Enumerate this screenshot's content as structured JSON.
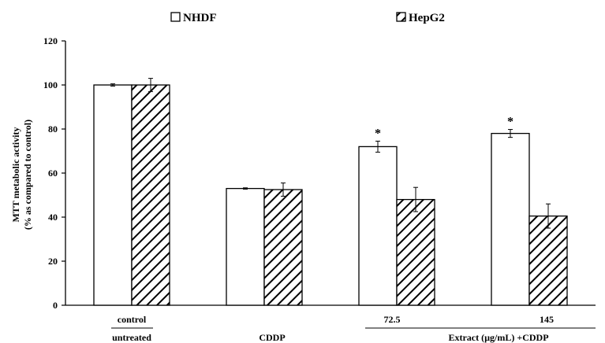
{
  "chart_data": {
    "type": "bar",
    "title": "",
    "ylabel_line1": "MTT metabolic activity",
    "ylabel_line2": "(% as compared to control)",
    "ylim": [
      0,
      120
    ],
    "yticks": [
      0,
      20,
      40,
      60,
      80,
      100,
      120
    ],
    "categories": [
      "control",
      "CDDP",
      "72.5",
      "145"
    ],
    "category_sublabels": [
      "untreated",
      "",
      "",
      ""
    ],
    "group_label": "Extract  (µg/mL) +CDDP",
    "series": [
      {
        "name": "NHDF",
        "pattern": "open",
        "values": [
          100,
          53,
          72,
          78
        ],
        "errors": [
          0.5,
          0.3,
          2.5,
          1.8
        ]
      },
      {
        "name": "HepG2",
        "pattern": "hatched",
        "values": [
          100,
          52.5,
          48,
          40.5
        ],
        "errors": [
          3,
          3,
          5.5,
          5.5
        ]
      }
    ],
    "significance": [
      "",
      "",
      "*",
      "*"
    ],
    "legend_position": "top",
    "grid": false,
    "colors": {
      "bar_fill": "#ffffff",
      "stroke": "#000000",
      "hatch": "#000000"
    }
  }
}
